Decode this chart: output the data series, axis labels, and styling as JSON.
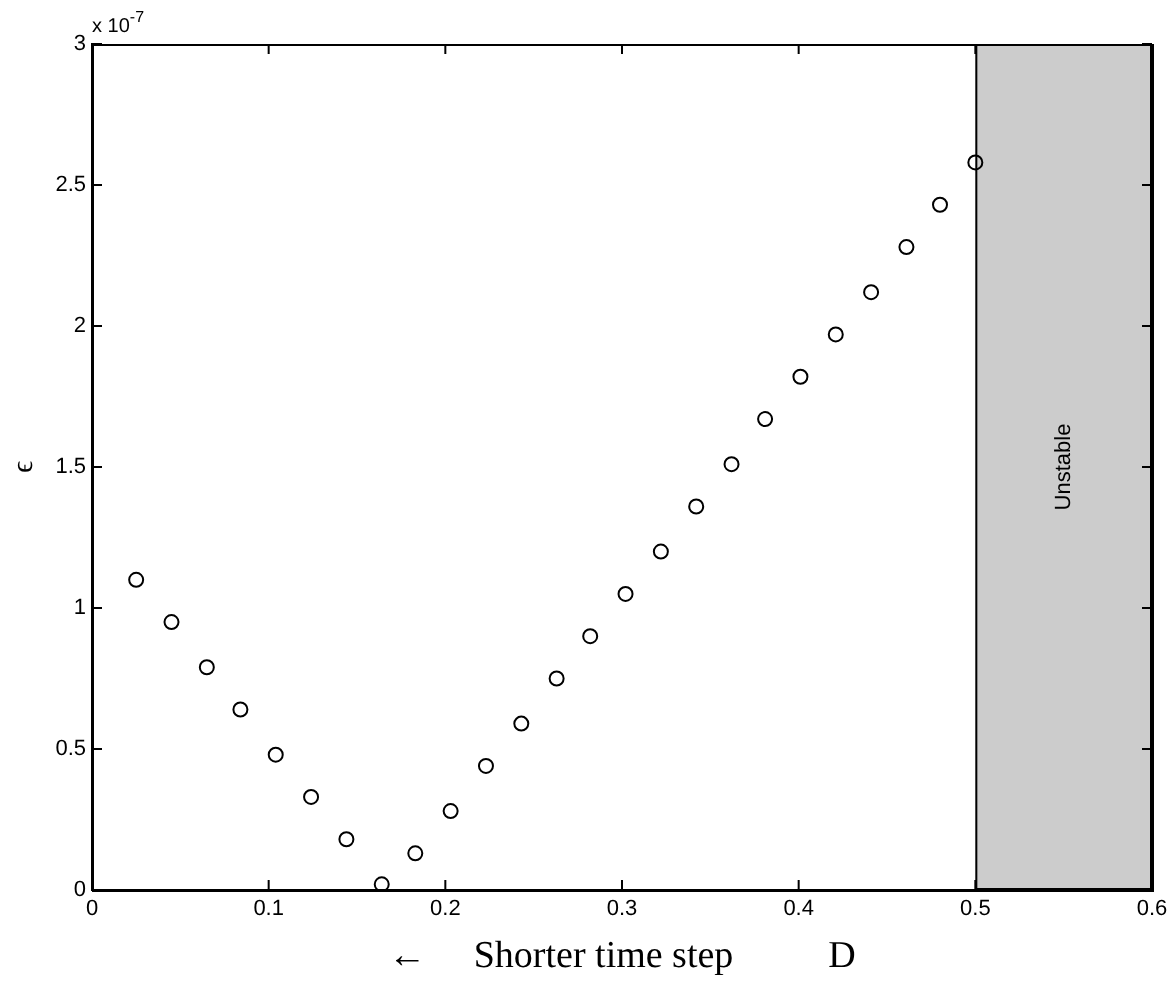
{
  "chart_data": {
    "type": "scatter",
    "xlabel": "←     Shorter time step          D",
    "ylabel": "ϵ",
    "annotations": [
      "x 10$^{-7}$"
    ],
    "x": [
      0.025,
      0.045,
      0.065,
      0.084,
      0.104,
      0.124,
      0.144,
      0.164,
      0.183,
      0.203,
      0.223,
      0.243,
      0.263,
      0.282,
      0.302,
      0.322,
      0.342,
      0.362,
      0.381,
      0.401,
      0.421,
      0.441,
      0.461,
      0.48,
      0.5
    ],
    "series": [
      {
        "color": "#000000",
        "values": [
          1.1,
          0.95,
          0.79,
          0.64,
          0.48,
          0.33,
          0.18,
          0.02,
          0.13,
          0.28,
          0.44,
          0.59,
          0.75,
          0.9,
          1.05,
          1.2,
          1.36,
          1.51,
          1.67,
          1.82,
          1.97,
          2.12,
          2.28,
          2.43,
          2.58
        ]
      }
    ],
    "xlim": [
      0,
      0.6
    ],
    "xticks": [
      0,
      0.1,
      0.2,
      0.3,
      0.4,
      0.5,
      0.6
    ],
    "ylim": [
      0,
      3
    ],
    "yticks": [
      0,
      0.5,
      1,
      1.5,
      2,
      2.5,
      3
    ],
    "bands": [
      {
        "axis": "x",
        "from": 0.5,
        "to": 0.6,
        "label": "Unstable",
        "color": "#cccccc"
      }
    ],
    "marker": "circle",
    "grid": false,
    "legend": false
  }
}
